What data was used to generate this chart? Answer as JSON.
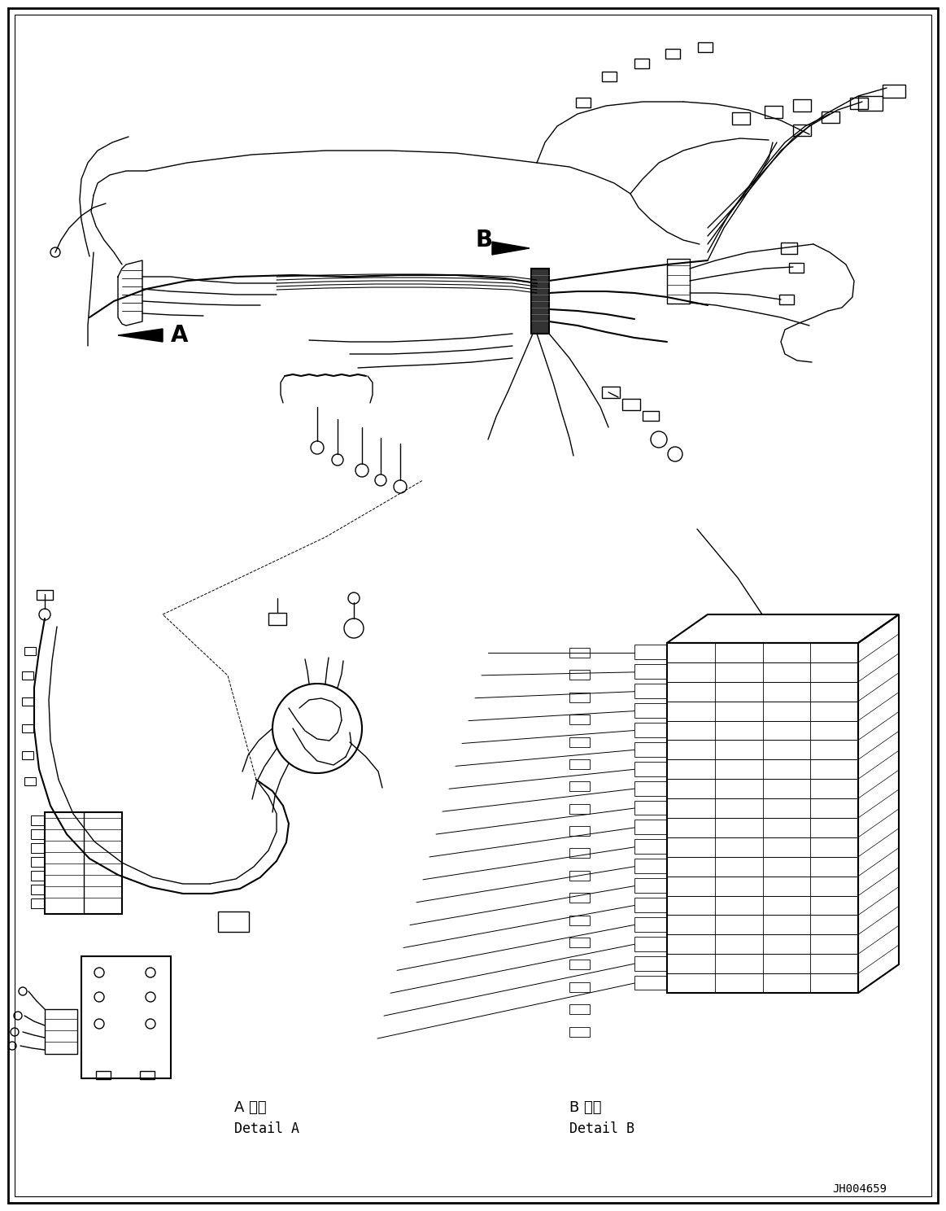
{
  "background_color": "#ffffff",
  "line_color": "#000000",
  "fig_width": 11.63,
  "fig_height": 14.88,
  "dpi": 100,
  "label_A": "A",
  "label_B": "B",
  "detail_A_jp": "A 詳細",
  "detail_A_en": "Detail A",
  "detail_B_jp": "B 詳細",
  "detail_B_en": "Detail B",
  "part_number": "JH004659",
  "border_color": "#000000",
  "text_color": "#000000",
  "font_size_label": 20,
  "font_size_detail": 12,
  "font_size_part": 10
}
